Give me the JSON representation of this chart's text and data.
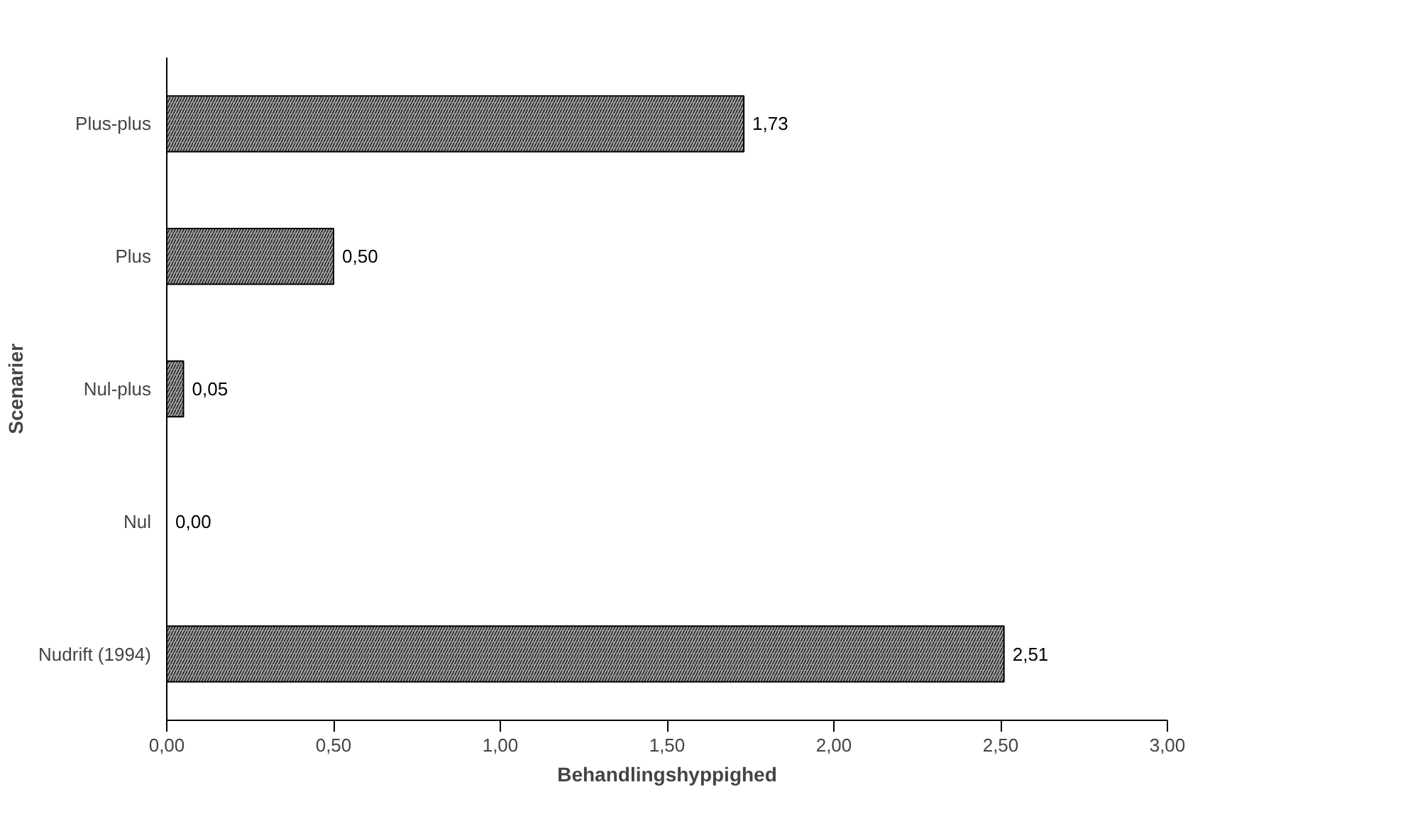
{
  "chart_data": {
    "type": "bar",
    "orientation": "horizontal",
    "xlabel": "Behandlingshyppighed",
    "ylabel": "Scenarier",
    "categories": [
      "Plus-plus",
      "Plus",
      "Nul-plus",
      "Nul",
      "Nudrift (1994)"
    ],
    "values": [
      1.73,
      0.5,
      0.05,
      0.0,
      2.51
    ],
    "value_labels": [
      "1,73",
      "0,50",
      "0,05",
      "0,00",
      "2,51"
    ],
    "color": "#a0a0a0",
    "xlim": [
      0,
      3
    ],
    "xticks": [
      {
        "value": 0,
        "label": "0,00"
      },
      {
        "value": 0.5,
        "label": "0,50"
      },
      {
        "value": 1,
        "label": "1,00"
      },
      {
        "value": 1.5,
        "label": "1,50"
      },
      {
        "value": 2,
        "label": "2,00"
      },
      {
        "value": 2.5,
        "label": "2,50"
      },
      {
        "value": 3,
        "label": "3,00"
      }
    ],
    "grid": false
  }
}
